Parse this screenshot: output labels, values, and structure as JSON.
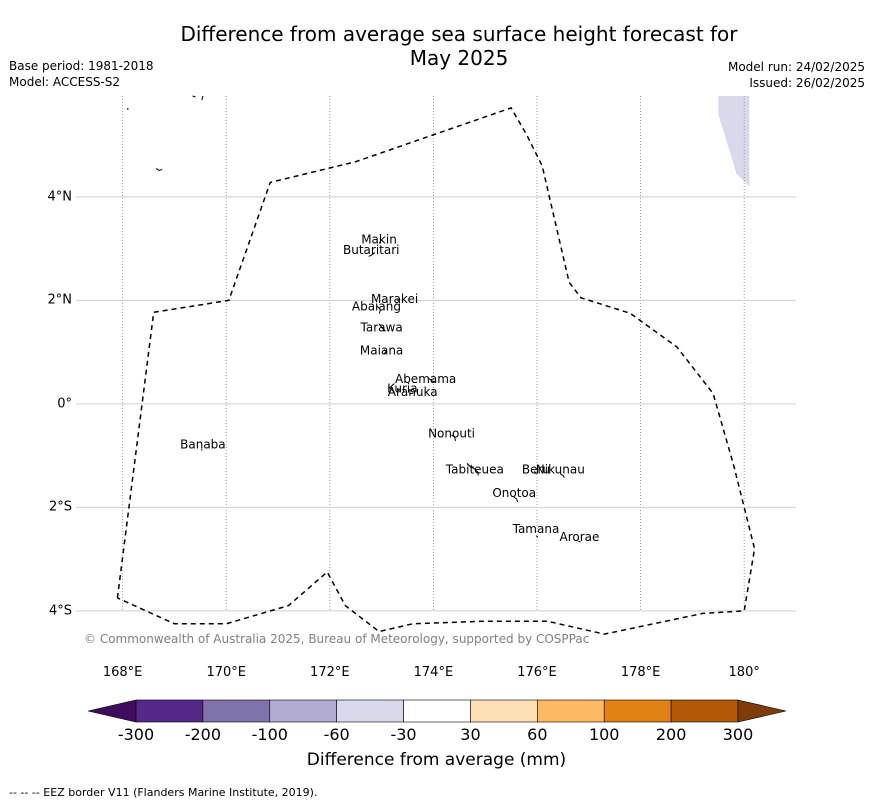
{
  "title": "Difference from average sea surface height forecast for\nMay 2025",
  "meta_left": [
    "Base period: 1981-2018",
    "Model: ACCESS-S2"
  ],
  "meta_right": [
    "Model run: 24/02/2025",
    "Issued: 26/02/2025"
  ],
  "credit": "© Commonwealth of Australia 2025, Bureau of Meteorology, supported by COSPPac",
  "x_ticks": [
    "168°E",
    "170°E",
    "172°E",
    "174°E",
    "176°E",
    "178°E",
    "180°"
  ],
  "y_ticks": [
    "4°N",
    "2°N",
    "0°",
    "2°S",
    "4°S"
  ],
  "places": [
    {
      "name": "Makin",
      "lon": 172.95,
      "lat": 3.1
    },
    {
      "name": "Butaritari",
      "lon": 172.8,
      "lat": 2.9
    },
    {
      "name": "Marakei",
      "lon": 173.25,
      "lat": 1.95
    },
    {
      "name": "Abaiang",
      "lon": 172.9,
      "lat": 1.8
    },
    {
      "name": "Tarawa",
      "lon": 173.0,
      "lat": 1.4
    },
    {
      "name": "Maiana",
      "lon": 173.0,
      "lat": 0.95
    },
    {
      "name": "Abemama",
      "lon": 173.85,
      "lat": 0.4
    },
    {
      "name": "Kuria",
      "lon": 173.4,
      "lat": 0.22
    },
    {
      "name": "Aranuka",
      "lon": 173.6,
      "lat": 0.15
    },
    {
      "name": "Nonouti",
      "lon": 174.35,
      "lat": -0.65
    },
    {
      "name": "Banaba",
      "lon": 169.55,
      "lat": -0.86
    },
    {
      "name": "Beru",
      "lon": 175.98,
      "lat": -1.35
    },
    {
      "name": "Nikunau",
      "lon": 176.45,
      "lat": -1.35
    },
    {
      "name": "Tabiteuea",
      "lon": 174.8,
      "lat": -1.35
    },
    {
      "name": "Onotoa",
      "lon": 175.56,
      "lat": -1.8
    },
    {
      "name": "Tamana",
      "lon": 175.98,
      "lat": -2.5
    },
    {
      "name": "Arorae",
      "lon": 176.82,
      "lat": -2.65
    }
  ],
  "map_extent": {
    "lon": [
      167.1,
      181.0
    ],
    "lat": [
      -4.95,
      5.95
    ]
  },
  "eez_border_lonlat": [
    [
      167.9,
      -3.75
    ],
    [
      168.6,
      1.77
    ],
    [
      170.05,
      2.0
    ],
    [
      170.85,
      4.28
    ],
    [
      172.5,
      4.68
    ],
    [
      175.5,
      5.72
    ],
    [
      175.8,
      5.2
    ],
    [
      176.1,
      4.6
    ],
    [
      176.62,
      2.35
    ],
    [
      176.85,
      2.05
    ],
    [
      177.8,
      1.75
    ],
    [
      178.7,
      1.1
    ],
    [
      179.4,
      0.2
    ],
    [
      179.8,
      -1.2
    ],
    [
      180.2,
      -2.8
    ],
    [
      180.0,
      -4.0
    ],
    [
      179.2,
      -4.05
    ],
    [
      177.3,
      -4.45
    ],
    [
      176.2,
      -4.2
    ],
    [
      175.0,
      -4.2
    ],
    [
      173.6,
      -4.25
    ],
    [
      172.95,
      -4.4
    ],
    [
      172.3,
      -3.9
    ],
    [
      171.95,
      -3.25
    ],
    [
      171.2,
      -3.9
    ],
    [
      170.0,
      -4.25
    ],
    [
      169.0,
      -4.25
    ],
    [
      167.9,
      -3.75
    ]
  ],
  "shaded_patch_lonlat": [
    [
      179.5,
      5.95
    ],
    [
      180.1,
      5.95
    ],
    [
      180.1,
      4.2
    ],
    [
      179.85,
      4.45
    ],
    [
      179.5,
      5.6
    ]
  ],
  "colorbar": {
    "labels": [
      "-300",
      "-200",
      "-100",
      "-60",
      "-30",
      "30",
      "60",
      "100",
      "200",
      "300"
    ],
    "colors": [
      "#3f0d5e",
      "#542788",
      "#8073ac",
      "#b2abd2",
      "#d8daeb",
      "#ffffff",
      "#fee0b6",
      "#fdb863",
      "#e08214",
      "#b35806",
      "#7f3b08"
    ],
    "title": "Difference from average (mm)"
  },
  "footer": "--  --  -- EEZ border V11 (Flanders Marine Institute, 2019)."
}
